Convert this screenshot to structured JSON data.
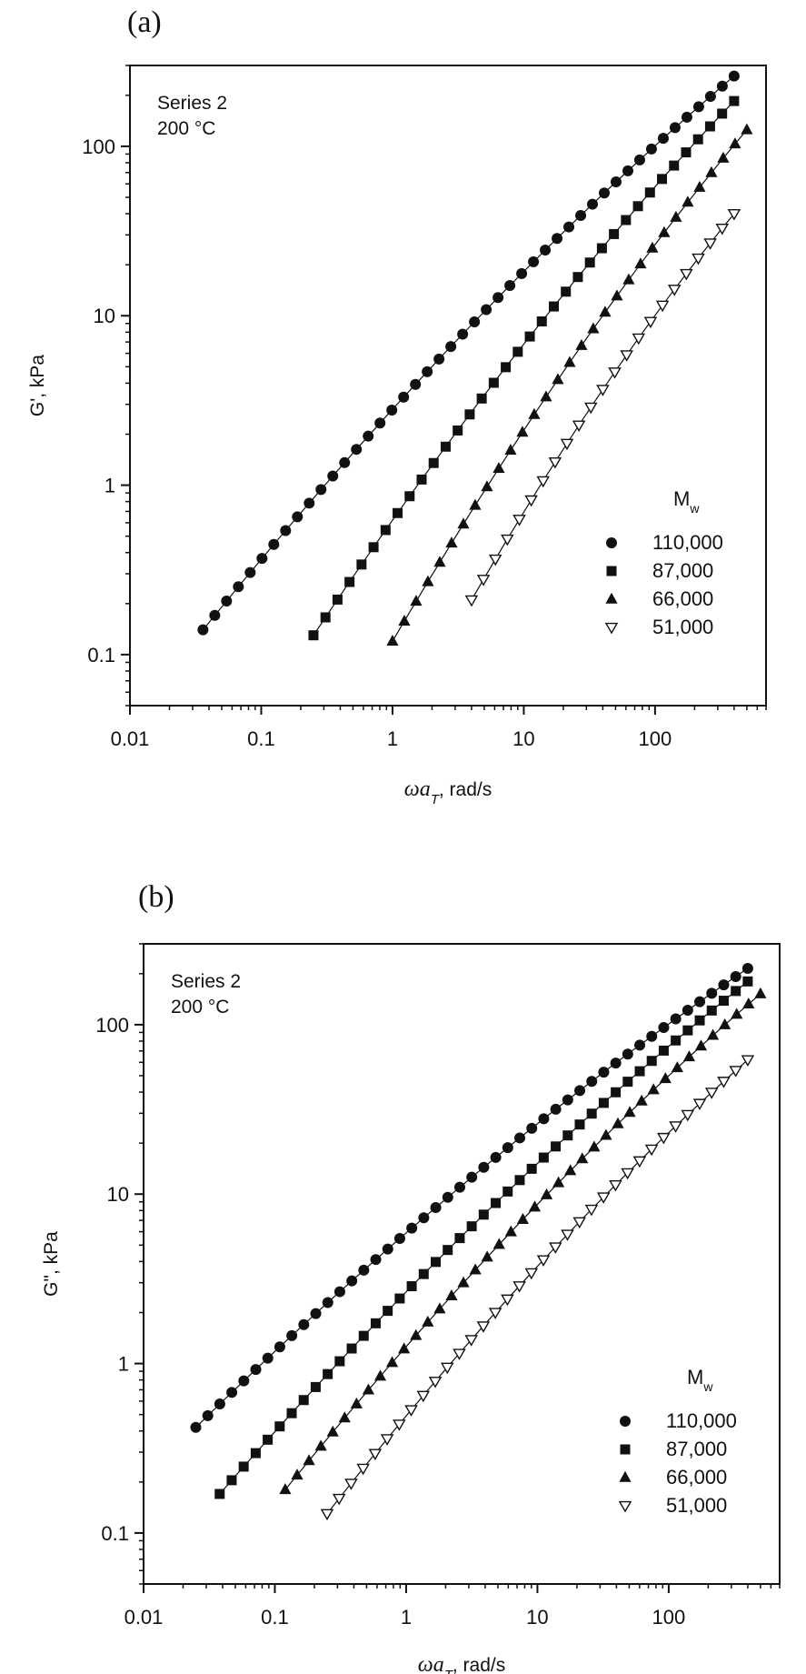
{
  "chart_data": [
    {
      "panel_label": "(a)",
      "type": "scatter",
      "x_scale": "log",
      "y_scale": "log",
      "xlim": [
        0.01,
        700
      ],
      "ylim": [
        0.05,
        300
      ],
      "xlabel": "ωa",
      "xlabel_sub": "T",
      "xlabel_unit": ", rad/s",
      "ylabel": "G', kPa",
      "x_ticks": [
        0.01,
        0.1,
        1,
        10,
        100
      ],
      "x_tick_labels": [
        "0.01",
        "0.1",
        "1",
        "10",
        "100"
      ],
      "y_ticks": [
        0.1,
        1,
        10,
        100
      ],
      "y_tick_labels": [
        "0.1",
        "1",
        "10",
        "100"
      ],
      "annotations": [
        "Series 2",
        "200 °C"
      ],
      "legend_title": "M",
      "legend_title_sub": "w",
      "legend_position": "bottom-right",
      "series": [
        {
          "name": "110,000",
          "marker": "circle",
          "x_range": [
            0.036,
            400
          ],
          "y_range": [
            0.14,
            260
          ]
        },
        {
          "name": "87,000",
          "marker": "square",
          "x_range": [
            0.25,
            400
          ],
          "y_range": [
            0.13,
            185
          ]
        },
        {
          "name": "66,000",
          "marker": "triangle-up",
          "x_range": [
            1.0,
            500
          ],
          "y_range": [
            0.12,
            125
          ]
        },
        {
          "name": "51,000",
          "marker": "triangle-down-open",
          "x_range": [
            4.0,
            400
          ],
          "y_range": [
            0.21,
            40
          ]
        }
      ]
    },
    {
      "panel_label": "(b)",
      "type": "scatter",
      "x_scale": "log",
      "y_scale": "log",
      "xlim": [
        0.01,
        700
      ],
      "ylim": [
        0.05,
        300
      ],
      "xlabel": "ωa",
      "xlabel_sub": "T",
      "xlabel_unit": ", rad/s",
      "ylabel": "G\", kPa",
      "x_ticks": [
        0.01,
        0.1,
        1,
        10,
        100
      ],
      "x_tick_labels": [
        "0.01",
        "0.1",
        "1",
        "10",
        "100"
      ],
      "y_ticks": [
        0.1,
        1,
        10,
        100
      ],
      "y_tick_labels": [
        "0.1",
        "1",
        "10",
        "100"
      ],
      "annotations": [
        "Series 2",
        "200 °C"
      ],
      "legend_title": "M",
      "legend_title_sub": "w",
      "legend_position": "bottom-right",
      "series": [
        {
          "name": "110,000",
          "marker": "circle",
          "x_range": [
            0.025,
            400
          ],
          "y_range": [
            0.42,
            215
          ]
        },
        {
          "name": "87,000",
          "marker": "square",
          "x_range": [
            0.038,
            400
          ],
          "y_range": [
            0.17,
            180
          ]
        },
        {
          "name": "66,000",
          "marker": "triangle-up",
          "x_range": [
            0.12,
            500
          ],
          "y_range": [
            0.18,
            152
          ]
        },
        {
          "name": "51,000",
          "marker": "triangle-down-open",
          "x_range": [
            0.25,
            400
          ],
          "y_range": [
            0.13,
            62
          ]
        }
      ]
    }
  ]
}
